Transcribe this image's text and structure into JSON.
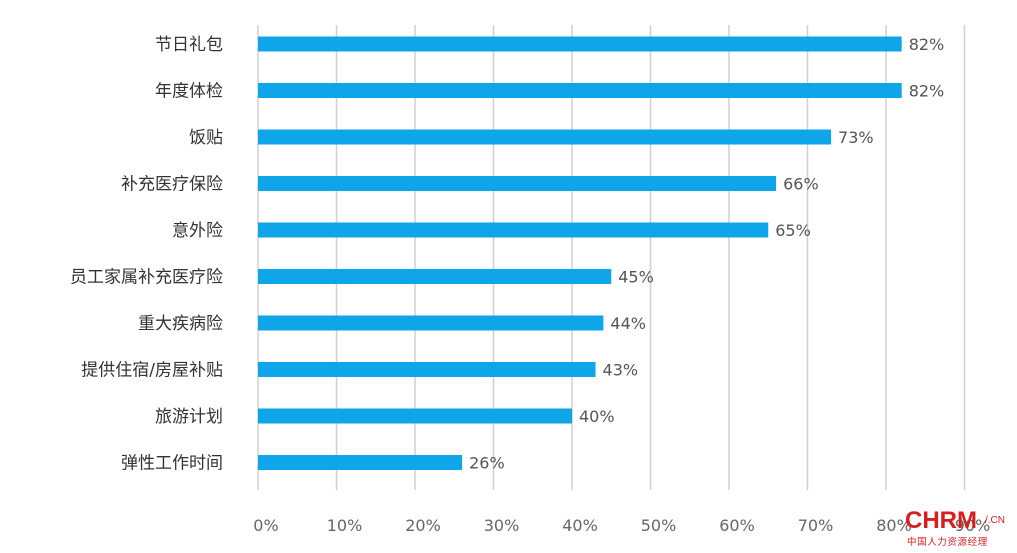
{
  "chart_data": {
    "type": "bar",
    "orientation": "horizontal",
    "categories": [
      "节日礼包",
      "年度体检",
      "饭贴",
      "补充医疗保险",
      "意外险",
      "员工家属补充医疗险",
      "重大疾病险",
      "提供住宿/房屋补贴",
      "旅游计划",
      "弹性工作时间"
    ],
    "values": [
      82,
      82,
      73,
      66,
      65,
      45,
      44,
      43,
      40,
      26
    ],
    "value_labels": [
      "82%",
      "82%",
      "73%",
      "66%",
      "65%",
      "45%",
      "44%",
      "43%",
      "40%",
      "26%"
    ],
    "xlim": [
      0,
      90
    ],
    "x_ticks": [
      "0%",
      "10%",
      "20%",
      "30%",
      "40%",
      "50%",
      "60%",
      "70%",
      "80%",
      "90%"
    ],
    "grid": true,
    "bar_color": "#0ea5e9",
    "title": "",
    "xlabel": "",
    "ylabel": ""
  },
  "watermark": {
    "main": "CHRM",
    "suffix": "/.CN",
    "sub": "中国人力资源经理"
  }
}
